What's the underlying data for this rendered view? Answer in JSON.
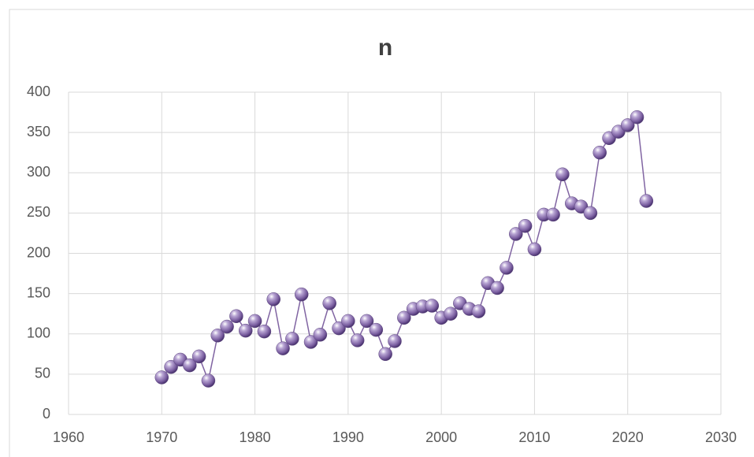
{
  "chart_data": {
    "type": "scatter-line",
    "title": "n",
    "x": [
      1970,
      1971,
      1972,
      1973,
      1974,
      1975,
      1976,
      1977,
      1978,
      1979,
      1980,
      1981,
      1982,
      1983,
      1984,
      1985,
      1986,
      1987,
      1988,
      1989,
      1990,
      1991,
      1992,
      1993,
      1994,
      1995,
      1996,
      1997,
      1998,
      1999,
      2000,
      2001,
      2002,
      2003,
      2004,
      2005,
      2006,
      2007,
      2008,
      2009,
      2010,
      2011,
      2012,
      2013,
      2014,
      2015,
      2016,
      2017,
      2018,
      2019,
      2020,
      2021,
      2022
    ],
    "values": [
      46,
      59,
      68,
      61,
      72,
      42,
      98,
      109,
      122,
      104,
      116,
      103,
      143,
      82,
      94,
      149,
      90,
      99,
      138,
      107,
      116,
      92,
      116,
      105,
      75,
      91,
      120,
      131,
      134,
      135,
      120,
      125,
      138,
      131,
      128,
      163,
      157,
      182,
      224,
      234,
      205,
      248,
      248,
      298,
      262,
      258,
      250,
      325,
      343,
      351,
      359,
      369,
      265
    ],
    "color": "#8064a2",
    "xlim": [
      1960,
      2030
    ],
    "xticks": [
      1960,
      1970,
      1980,
      1990,
      2000,
      2010,
      2020,
      2030
    ],
    "ylim": [
      0,
      400
    ],
    "yticks": [
      0,
      50,
      100,
      150,
      200,
      250,
      300,
      350,
      400
    ],
    "grid": true
  }
}
